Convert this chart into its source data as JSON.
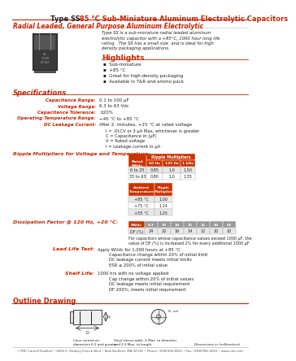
{
  "title_type": "Type SS",
  "title_rest": "  85 °C Sub-Miniature Aluminum Electrolytic Capacitors",
  "subtitle": "Radial Leaded, General Purpose Aluminum Electrolytic",
  "desc_lines": [
    "Type SS is a sub-miniature radial leaded aluminum",
    "electrolytic capacitor with a +85°C, 1000 hour long life",
    "rating.  The SS has a small size  and is ideal for high",
    "density packaging applications."
  ],
  "highlights_title": "Highlights",
  "highlights": [
    "Sub-miniature",
    "+85 °C",
    "Great for high-density packaging",
    "Available in T&R and ammo pack"
  ],
  "specs_title": "Specifications",
  "spec_labels": [
    "Capacitance Range:",
    "Voltage Range:",
    "Capacitance Tolerance:",
    "Operating Temperature Range:",
    "DC Leakage Current:"
  ],
  "spec_values": [
    "0.1 to 100 μF",
    "6.3 to 63 Vdc",
    "±20%",
    "−40 °C to +85 °C",
    "After 2  minutes, +25 °C at rated voltage"
  ],
  "dc_leakage_extra": [
    "I = .01CV or 3 μA Max, whichever is greater",
    "C = Capacitance in (μF)",
    "V = Rated voltage",
    "I = Leakage current in μA"
  ],
  "ripple_title": "Ripple Multipliers for Voltage and Temperature:",
  "ripple_volt_header1": "Rated",
  "ripple_volt_header2": "WVdc",
  "ripple_mult_header": "Ripple Multipliers",
  "ripple_freq_headers": [
    "60 Hz",
    "125 Hz",
    "1 kHz"
  ],
  "ripple_volt_rows": [
    [
      "6 to 25",
      "0.85",
      "1.0",
      "1.50"
    ],
    [
      "35 to 63",
      "0.80",
      "1.0",
      "1.35"
    ]
  ],
  "ripple_temp_col1": "Ambient\nTemperature",
  "ripple_temp_col2": "Ripple\nMultiplier",
  "ripple_temp_rows": [
    [
      "+85 °C",
      "1.00"
    ],
    [
      "+75 °C",
      "1.14"
    ],
    [
      "+55 °C",
      "1.25"
    ]
  ],
  "diss_title": "Dissipation Factor @ 120 Hz, +20 °C:",
  "diss_wvdc": [
    "6.3",
    "10",
    "16",
    "25",
    "35",
    "50",
    "63"
  ],
  "diss_df": [
    "24",
    "20",
    "16",
    "14",
    "12",
    "10",
    "10"
  ],
  "diss_note1": "For capacitors whose capacitance values exceed 1000 μF, the",
  "diss_note2": "value of DF (%) is increased 2% for every additional 1000 μF",
  "ll_title": "Lead Life Test:",
  "ll_lines": [
    "Apply WVdc for 1,000 hours at +85 °C",
    "Capacitance change within 20% of initial limit",
    "DC leakage current meets initial limits",
    "ESR ≤ 200% of initial value"
  ],
  "sl_title": "Shelf Life:",
  "sl_lines": [
    "1000 hrs with no voltage applied",
    "Cap change within 20% of initial values",
    "DC leakage meets initial requirement",
    "DF 200%, meets initial requirement"
  ],
  "outline_title": "Outline Drawing",
  "footer": "©TDK Cornell Dubilier • 4695 E. Rodney French Blvd • New Bedford, MA 02744 • Phone: (508)996-8561 • Fax: (508)996-3830 • www.cde.com",
  "red": "#CC2200",
  "dark": "#222222",
  "white": "#FFFFFF",
  "table_hdr": "#CC3300",
  "table_hdr2": "#996644",
  "row_alt": "#E8E8E8"
}
